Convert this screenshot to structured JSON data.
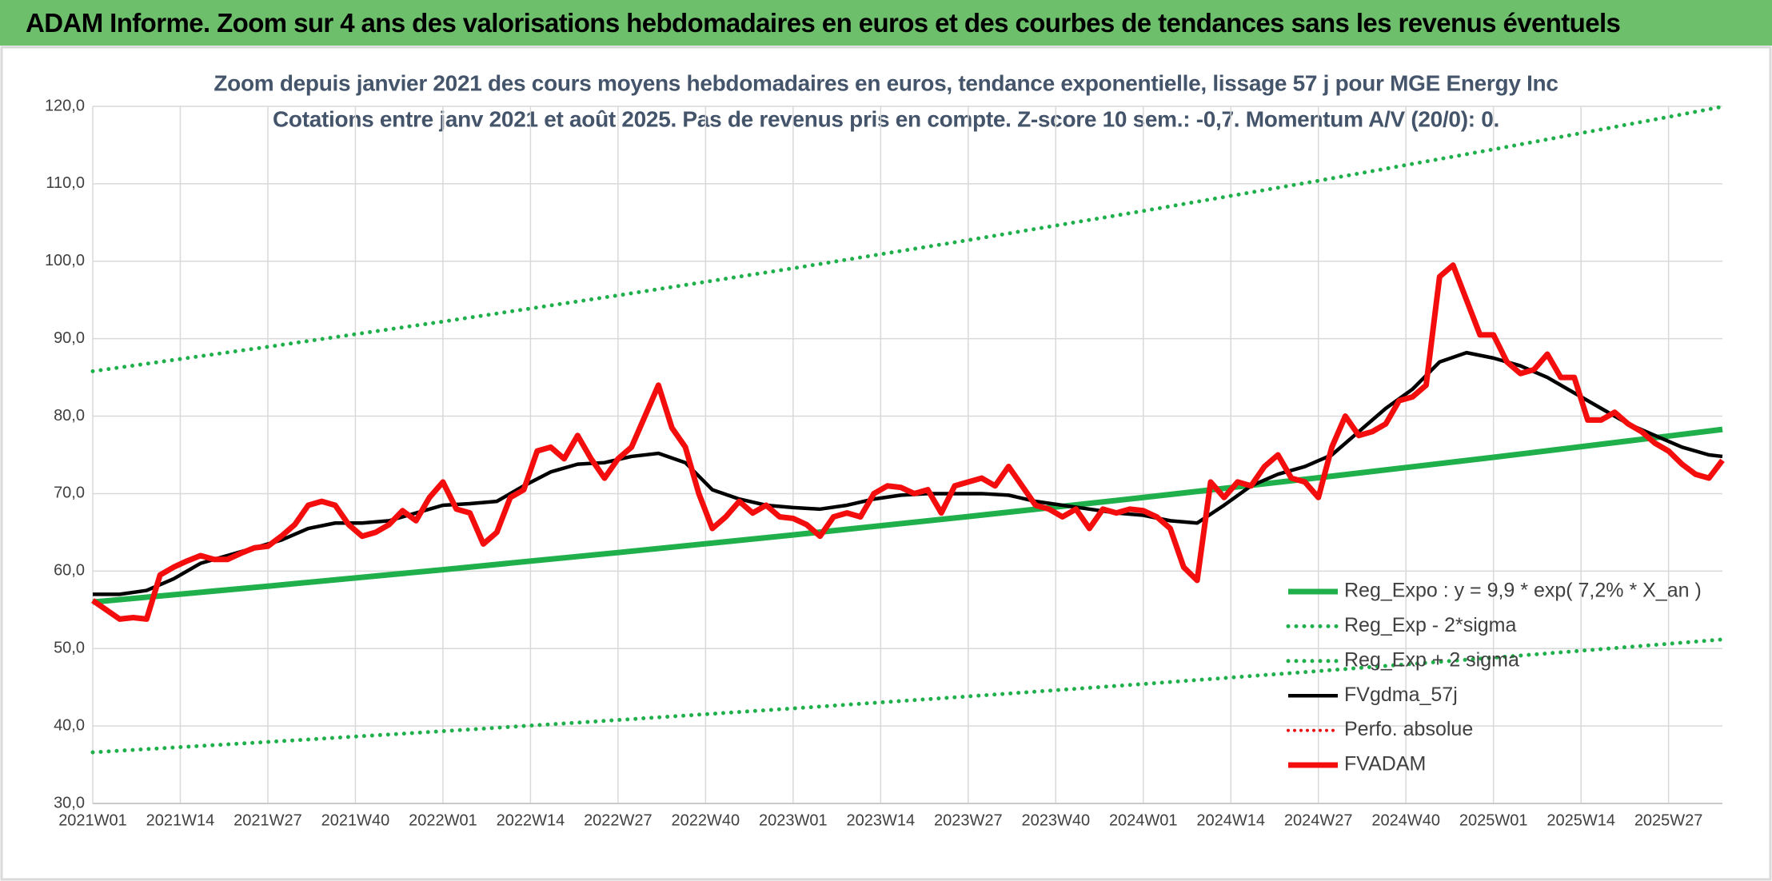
{
  "header": {
    "title": "ADAM Informe. Zoom sur 4 ans des valorisations hebdomadaires en euros et des courbes de tendances sans les revenus éventuels"
  },
  "chart_data": {
    "type": "line",
    "title": "Zoom depuis janvier 2021 des cours moyens hebdomadaires en euros, tendance exponentielle, lissage 57 j pour MGE Energy Inc",
    "subtitle": "Cotations entre janv 2021 et août 2025. Pas de revenus pris en compte. Z-score 10 sem.: -0,7. Momentum A/V (20/0): 0.",
    "xlim": [
      0,
      242
    ],
    "xticks": [
      {
        "value": 0,
        "label": "2021W01"
      },
      {
        "value": 13,
        "label": "2021W14"
      },
      {
        "value": 26,
        "label": "2021W27"
      },
      {
        "value": 39,
        "label": "2021W40"
      },
      {
        "value": 52,
        "label": "2022W01"
      },
      {
        "value": 65,
        "label": "2022W14"
      },
      {
        "value": 78,
        "label": "2022W27"
      },
      {
        "value": 91,
        "label": "2022W40"
      },
      {
        "value": 104,
        "label": "2023W01"
      },
      {
        "value": 117,
        "label": "2023W14"
      },
      {
        "value": 130,
        "label": "2023W27"
      },
      {
        "value": 143,
        "label": "2023W40"
      },
      {
        "value": 156,
        "label": "2024W01"
      },
      {
        "value": 169,
        "label": "2024W14"
      },
      {
        "value": 182,
        "label": "2024W27"
      },
      {
        "value": 195,
        "label": "2024W40"
      },
      {
        "value": 208,
        "label": "2025W01"
      },
      {
        "value": 221,
        "label": "2025W14"
      },
      {
        "value": 234,
        "label": "2025W27"
      }
    ],
    "ylim": [
      30,
      120
    ],
    "yticks": [
      {
        "value": 30,
        "label": "30,0"
      },
      {
        "value": 40,
        "label": "40,0"
      },
      {
        "value": 50,
        "label": "50,0"
      },
      {
        "value": 60,
        "label": "60,0"
      },
      {
        "value": 70,
        "label": "70,0"
      },
      {
        "value": 80,
        "label": "80,0"
      },
      {
        "value": 90,
        "label": "90,0"
      },
      {
        "value": 100,
        "label": "100,0"
      },
      {
        "value": 110,
        "label": "110,0"
      },
      {
        "value": 120,
        "label": "120,0"
      }
    ],
    "grid": true,
    "legend": "right",
    "series": [
      {
        "name": "Reg_Expo : y = 9,9 * exp( 7,2% *  X_an )",
        "color": "#1fb04c",
        "style": "solid",
        "width": 7,
        "x": [
          0,
          26,
          52,
          78,
          104,
          130,
          156,
          182,
          208,
          234,
          242
        ],
        "values": [
          56.0,
          58.05,
          60.18,
          62.39,
          64.67,
          67.04,
          69.5,
          72.05,
          74.69,
          77.43,
          78.29
        ]
      },
      {
        "name": "Reg_Exp - 2*sigma",
        "color": "#1fb04c",
        "style": "dotted",
        "width": 5,
        "x": [
          0,
          26,
          52,
          78,
          104,
          130,
          156,
          182,
          208,
          234,
          242
        ],
        "values": [
          36.6,
          37.94,
          39.33,
          40.77,
          42.27,
          43.82,
          45.42,
          47.09,
          48.82,
          50.61,
          51.17
        ]
      },
      {
        "name": "Reg_Exp + 2 sigma",
        "color": "#1fb04c",
        "style": "dotted",
        "width": 5,
        "x": [
          0,
          26,
          52,
          78,
          104,
          130,
          156,
          182,
          208,
          234,
          242
        ],
        "values": [
          85.8,
          88.95,
          92.21,
          95.59,
          99.09,
          102.72,
          106.49,
          110.39,
          114.44,
          118.63,
          119.96
        ]
      },
      {
        "name": "FVgdma_57j",
        "color": "#000000",
        "style": "solid",
        "width": 4.5,
        "x": [
          0,
          4,
          8,
          12,
          16,
          20,
          24,
          28,
          32,
          36,
          40,
          44,
          48,
          52,
          56,
          60,
          64,
          68,
          72,
          76,
          80,
          84,
          88,
          92,
          96,
          100,
          104,
          108,
          112,
          116,
          120,
          124,
          128,
          132,
          136,
          140,
          144,
          148,
          152,
          156,
          160,
          164,
          168,
          172,
          176,
          180,
          184,
          188,
          192,
          196,
          200,
          204,
          208,
          212,
          216,
          220,
          224,
          228,
          232,
          236,
          240,
          242
        ],
        "values": [
          57,
          57,
          57.5,
          59,
          61,
          62,
          63,
          64,
          65.5,
          66.2,
          66.2,
          66.5,
          67.5,
          68.5,
          68.7,
          69,
          71,
          72.8,
          73.8,
          74,
          74.8,
          75.2,
          74,
          70.5,
          69.3,
          68.5,
          68.2,
          68,
          68.5,
          69.3,
          69.8,
          70,
          70,
          70,
          69.8,
          69,
          68.5,
          68,
          67.5,
          67.2,
          66.5,
          66.2,
          68.5,
          71,
          72.5,
          73.5,
          75,
          78,
          81,
          83.5,
          87,
          88.2,
          87.5,
          86.5,
          85,
          83,
          81,
          79,
          77.5,
          76,
          75,
          74.8
        ]
      },
      {
        "name": "Perfo. absolue",
        "color": "#e8100f",
        "style": "dotted",
        "width": 4
      },
      {
        "name": "FVADAM",
        "color": "#f40d0d",
        "style": "solid",
        "width": 7,
        "x": [
          0,
          2,
          4,
          6,
          8,
          10,
          12,
          14,
          16,
          18,
          20,
          22,
          24,
          26,
          28,
          30,
          32,
          34,
          36,
          38,
          40,
          42,
          44,
          46,
          48,
          50,
          52,
          54,
          56,
          58,
          60,
          62,
          64,
          66,
          68,
          70,
          72,
          74,
          76,
          78,
          80,
          82,
          84,
          86,
          88,
          90,
          92,
          94,
          96,
          98,
          100,
          102,
          104,
          106,
          108,
          110,
          112,
          114,
          116,
          118,
          120,
          122,
          124,
          126,
          128,
          130,
          132,
          134,
          136,
          138,
          140,
          142,
          144,
          146,
          148,
          150,
          152,
          154,
          156,
          158,
          160,
          162,
          164,
          166,
          168,
          170,
          172,
          174,
          176,
          178,
          180,
          182,
          184,
          186,
          188,
          190,
          192,
          194,
          196,
          198,
          200,
          202,
          204,
          206,
          208,
          210,
          212,
          214,
          216,
          218,
          220,
          222,
          224,
          226,
          228,
          230,
          232,
          234,
          236,
          238,
          240,
          242
        ],
        "values": [
          56.2,
          55,
          53.8,
          54,
          53.8,
          59.5,
          60.5,
          61.3,
          62,
          61.5,
          61.5,
          62.3,
          63,
          63.2,
          64.5,
          66,
          68.5,
          69,
          68.5,
          66,
          64.5,
          65,
          66,
          67.8,
          66.5,
          69.5,
          71.5,
          68,
          67.5,
          63.5,
          65,
          69.5,
          70.5,
          75.5,
          76,
          74.5,
          77.5,
          74.5,
          72,
          74.5,
          76,
          80,
          84,
          78.5,
          76,
          70,
          65.5,
          67,
          69,
          67.5,
          68.5,
          67,
          66.8,
          66,
          64.5,
          67,
          67.5,
          67,
          70,
          71,
          70.8,
          70,
          70.5,
          67.5,
          71,
          71.5,
          72,
          71,
          73.5,
          71,
          68.5,
          68,
          67,
          68,
          65.5,
          68,
          67.5,
          68,
          67.8,
          67,
          65.5,
          60.5,
          58.8,
          71.5,
          69.5,
          71.5,
          71,
          73.5,
          75,
          72,
          71.5,
          69.5,
          76,
          80,
          77.5,
          78,
          79,
          82,
          82.5,
          84,
          98,
          99.5,
          95,
          90.5,
          90.5,
          87,
          85.5,
          86,
          88,
          85,
          85,
          79.5,
          79.5,
          80.5,
          79,
          78,
          76.5,
          75.5,
          73.8,
          72.5,
          72,
          74.3
        ]
      }
    ]
  }
}
